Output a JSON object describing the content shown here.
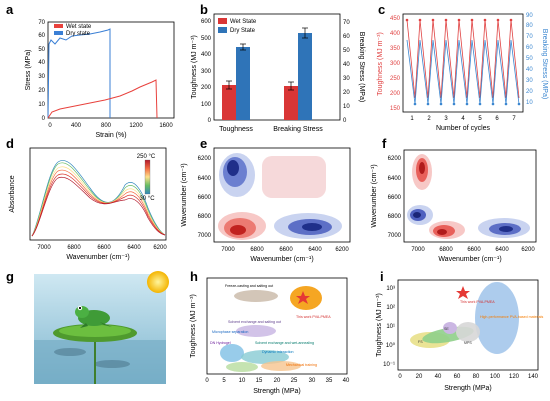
{
  "panels": [
    "a",
    "b",
    "c",
    "d",
    "e",
    "f",
    "g",
    "h",
    "i"
  ],
  "panel_a": {
    "xlabel": "Strain (%)",
    "ylabel": "Stress (MPa)",
    "xticks": [
      "0",
      "400",
      "800",
      "1200",
      "1600"
    ],
    "yticks": [
      "0",
      "10",
      "20",
      "30",
      "40",
      "50",
      "60",
      "70"
    ],
    "legend": [
      {
        "name": "Wet state",
        "color": "#e8413c"
      },
      {
        "name": "Dry state",
        "color": "#3a7fd5"
      }
    ]
  },
  "panel_b": {
    "ylabel_left": "Toughness (MJ m⁻³)",
    "ylabel_right": "Breaking Stress (MPa)",
    "categories": [
      "Toughness",
      "Breaking Stress"
    ],
    "yticks_left": [
      "0",
      "100",
      "200",
      "300",
      "400",
      "500",
      "600"
    ],
    "yticks_right": [
      "0",
      "10",
      "20",
      "30",
      "40",
      "50",
      "60",
      "70"
    ],
    "legend": [
      {
        "name": "Wet State",
        "color": "#d93636"
      },
      {
        "name": "Dry State",
        "color": "#2f74b8"
      }
    ]
  },
  "panel_c": {
    "xlabel": "Number of cycles",
    "ylabel_left": "Toughness (MJ m⁻³)",
    "ylabel_right": "Breaking Stress (MPa)",
    "xticks": [
      "1",
      "2",
      "3",
      "4",
      "5",
      "6",
      "7"
    ],
    "yticks_left": [
      "150",
      "200",
      "250",
      "300",
      "350",
      "400",
      "450"
    ],
    "yticks_right": [
      "10",
      "20",
      "30",
      "40",
      "50",
      "60",
      "70",
      "80",
      "90"
    ],
    "colors": {
      "toughness": "#e04040",
      "stress": "#3a86d0"
    }
  },
  "panel_d": {
    "xlabel": "Wavenumber (cm⁻¹)",
    "ylabel": "Absorbance",
    "xticks": [
      "7000",
      "6800",
      "6600",
      "6400",
      "6200"
    ],
    "temp_high": "250 °C",
    "temp_low": "30 °C"
  },
  "panel_e": {
    "xlabel": "Wavenumber (cm⁻¹)",
    "ylabel": "Wavenumber (cm⁻¹)",
    "xticks": [
      "7000",
      "6800",
      "6600",
      "6400",
      "6200"
    ],
    "yticks": [
      "6200",
      "6400",
      "6600",
      "6800",
      "7000"
    ]
  },
  "panel_f": {
    "xlabel": "Wavenumber (cm⁻¹)",
    "ylabel": "Wavenumber (cm⁻¹)",
    "xticks": [
      "7000",
      "6800",
      "6600",
      "6400",
      "6200"
    ],
    "yticks": [
      "6200",
      "6400",
      "6600",
      "6800",
      "7000"
    ]
  },
  "panel_h": {
    "xlabel": "Strength (MPa)",
    "ylabel": "Toughness (MJ m⁻³)",
    "xticks": [
      "0",
      "5",
      "10",
      "15",
      "20",
      "25",
      "30",
      "35",
      "40"
    ],
    "labels": [
      "Freeze-casting and salting out",
      "Solvent exchange and salting out",
      "This work PVA-PMEA",
      "Microphase separation",
      "DN Hydrogel",
      "Solvent exchange and wet-annealing",
      "Dynamic interaction",
      "Mechanical training"
    ]
  },
  "panel_i": {
    "xlabel": "Strength (MPa)",
    "ylabel": "Toughness (MJ m⁻³)",
    "xticks": [
      "0",
      "20",
      "40",
      "60",
      "80",
      "100",
      "120",
      "140"
    ],
    "yticks": [
      "10³",
      "10²",
      "10¹",
      "10⁰",
      "10⁻¹"
    ],
    "labels": [
      "This work PVA-PMEA",
      "High-performance PVA-based materials",
      "FS",
      "SE",
      "MPS"
    ]
  }
}
